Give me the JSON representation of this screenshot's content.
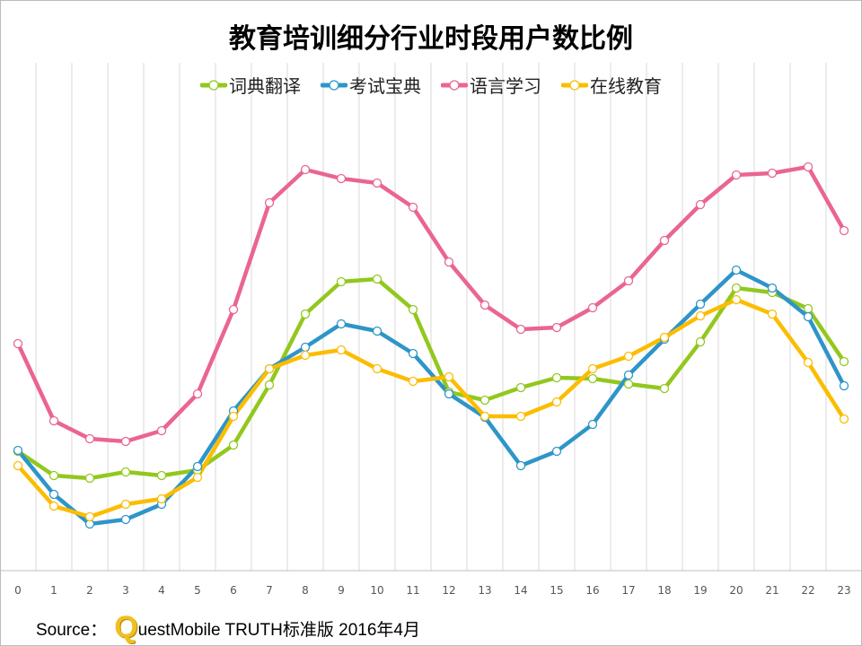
{
  "chart_data": {
    "type": "line",
    "title": "教育培训细分行业时段用户数比例",
    "xlabel": "",
    "ylabel": "",
    "x": [
      "0",
      "1",
      "2",
      "3",
      "4",
      "5",
      "6",
      "7",
      "8",
      "9",
      "10",
      "11",
      "12",
      "13",
      "14",
      "15",
      "16",
      "17",
      "18",
      "19",
      "20",
      "21",
      "22",
      "23"
    ],
    "ylim": [
      0,
      101
    ],
    "grid": "vertical",
    "legend_position": "top",
    "series": [
      {
        "name": "词典翻译",
        "color": "#92c81e",
        "values": [
          26.6,
          21.2,
          20.6,
          22,
          21.2,
          22.4,
          28,
          41.4,
          57.2,
          64.4,
          65,
          58.2,
          39.8,
          38,
          40.8,
          43,
          42.8,
          41.6,
          40.6,
          51,
          63,
          62,
          58.4,
          46.6
        ]
      },
      {
        "name": "考试宝典",
        "color": "#2e95c8",
        "values": [
          26.8,
          17,
          10.4,
          11.4,
          14.8,
          23.2,
          35.6,
          45,
          49.8,
          55,
          53.4,
          48.4,
          39.4,
          34.2,
          23.4,
          26.6,
          32.6,
          43.6,
          51.6,
          59.4,
          67,
          63,
          56.6,
          41.2
        ]
      },
      {
        "name": "语言学习",
        "color": "#ea6590",
        "values": [
          50.6,
          33.4,
          29.4,
          28.8,
          31.2,
          39.4,
          58.2,
          82,
          89.4,
          87.4,
          86.4,
          81,
          68.8,
          59.2,
          53.8,
          54.2,
          58.6,
          64.6,
          73.6,
          81.6,
          88.2,
          88.6,
          90,
          75.8
        ]
      },
      {
        "name": "在线教育",
        "color": "#fbbd00",
        "values": [
          23.4,
          14.4,
          12,
          14.8,
          16,
          20.8,
          34.4,
          45,
          48,
          49.2,
          45,
          42.2,
          43.2,
          34.4,
          34.4,
          37.6,
          45,
          47.8,
          52,
          56.8,
          60.4,
          57.2,
          46.4,
          33.8
        ]
      }
    ]
  },
  "source": {
    "prefix": "Source：",
    "logo_letter": "Q",
    "text": "uestMobile TRUTH标准版 2016年4月"
  }
}
